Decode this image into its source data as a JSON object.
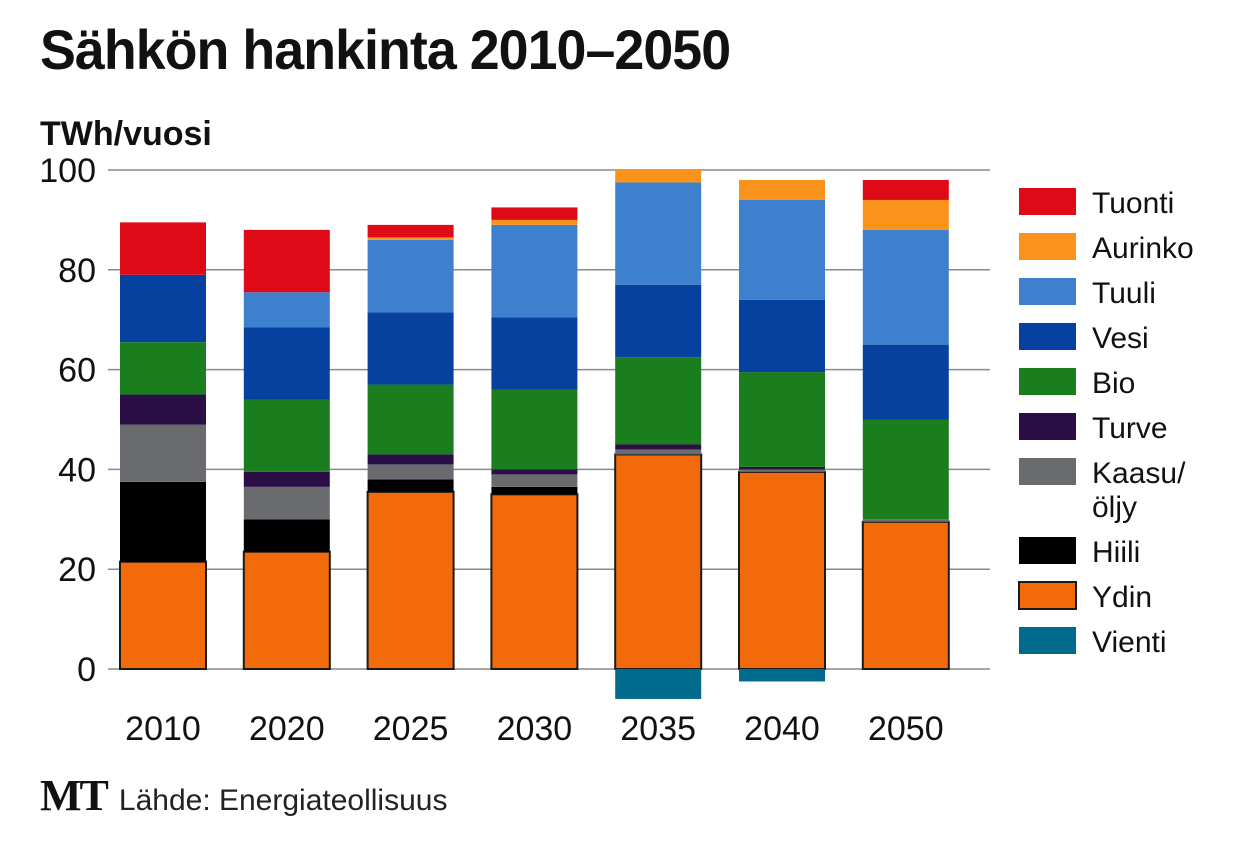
{
  "title": "Sähkön hankinta 2010–2050",
  "unit_label": "TWh/vuosi",
  "source": {
    "logo": "MT",
    "text": "Lähde: Energiateollisuus"
  },
  "chart_data": {
    "type": "bar",
    "stacked": true,
    "ylabel": "TWh/vuosi",
    "ylim": [
      0,
      100
    ],
    "yticks": [
      0,
      20,
      40,
      60,
      80,
      100
    ],
    "grid": true,
    "legend_position": "right",
    "categories": [
      "2010",
      "2020",
      "2025",
      "2030",
      "2035",
      "2040",
      "2050"
    ],
    "series": [
      {
        "name": "Ydin",
        "color": "#f26a0a",
        "values": [
          21.5,
          23.5,
          35.5,
          35,
          43,
          39.5,
          29.5
        ]
      },
      {
        "name": "Hiili",
        "color": "#000000",
        "values": [
          16,
          6.5,
          2.5,
          1.5,
          0,
          0,
          0
        ]
      },
      {
        "name": "Kaasu/ öljy",
        "color": "#696b6e",
        "values": [
          11.5,
          6.5,
          3,
          2.5,
          1,
          0.5,
          0.5
        ]
      },
      {
        "name": "Turve",
        "color": "#2a0e45",
        "values": [
          6,
          3,
          2,
          1,
          1,
          0.5,
          0
        ]
      },
      {
        "name": "Bio",
        "color": "#1a7d1e",
        "values": [
          10.5,
          14.5,
          14,
          16,
          17.5,
          19,
          20
        ]
      },
      {
        "name": "Vesi",
        "color": "#0641a0",
        "values": [
          13.5,
          14.5,
          14.5,
          14.5,
          14.5,
          14.5,
          15
        ]
      },
      {
        "name": "Tuuli",
        "color": "#3d80cd",
        "values": [
          0,
          7,
          14.5,
          18.5,
          20.5,
          20,
          23
        ]
      },
      {
        "name": "Aurinko",
        "color": "#f9931c",
        "values": [
          0,
          0,
          0.5,
          1,
          2.5,
          4,
          6
        ]
      },
      {
        "name": "Tuonti",
        "color": "#de0a17",
        "values": [
          10.5,
          12.5,
          2.5,
          2.5,
          0,
          0,
          4
        ]
      },
      {
        "name": "Vienti",
        "color": "#006b8d",
        "values": [
          0,
          0,
          0,
          0,
          -6,
          -2.5,
          0
        ]
      }
    ],
    "legend_order": [
      "Tuonti",
      "Aurinko",
      "Tuuli",
      "Vesi",
      "Bio",
      "Turve",
      "Kaasu/ öljy",
      "Hiili",
      "Ydin",
      "Vienti"
    ]
  }
}
